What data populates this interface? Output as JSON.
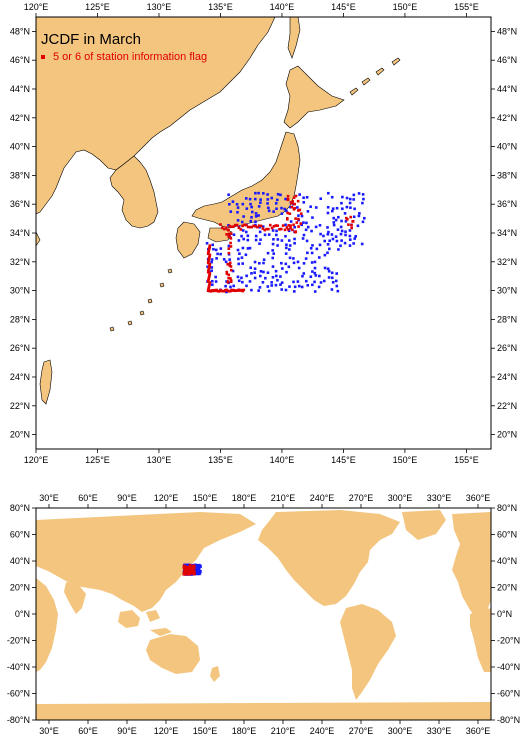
{
  "colors": {
    "land": "#f3c57f",
    "ocean": "#ffffff",
    "flag_points": "#e00000",
    "normal_points": "#1a1aff",
    "frame": "#000000"
  },
  "regional_map": {
    "title": "JCDF in March",
    "legend": {
      "marker_color": "#e00000",
      "label": "5 or 6 of station information flag"
    },
    "lon_ticks": [
      "120°E",
      "125°E",
      "130°E",
      "135°E",
      "140°E",
      "145°E",
      "150°E",
      "155°E"
    ],
    "lat_ticks": [
      "48°N",
      "46°N",
      "44°N",
      "42°N",
      "40°N",
      "38°N",
      "36°N",
      "34°N",
      "32°N",
      "30°N",
      "28°N",
      "26°N",
      "24°N",
      "22°N",
      "20°N"
    ],
    "lon_range": [
      120,
      157
    ],
    "lat_range": [
      19,
      49
    ]
  },
  "global_map": {
    "lon_ticks": [
      "30°E",
      "60°E",
      "90°E",
      "120°E",
      "150°E",
      "180°E",
      "210°E",
      "240°E",
      "270°E",
      "300°E",
      "330°E",
      "360°E"
    ],
    "lat_ticks": [
      "80°N",
      "60°N",
      "40°N",
      "20°N",
      "0°N",
      "-20°N",
      "-40°N",
      "-60°N",
      "-80°N"
    ],
    "lon_range": [
      20,
      370
    ],
    "lat_range": [
      -80,
      80
    ]
  }
}
